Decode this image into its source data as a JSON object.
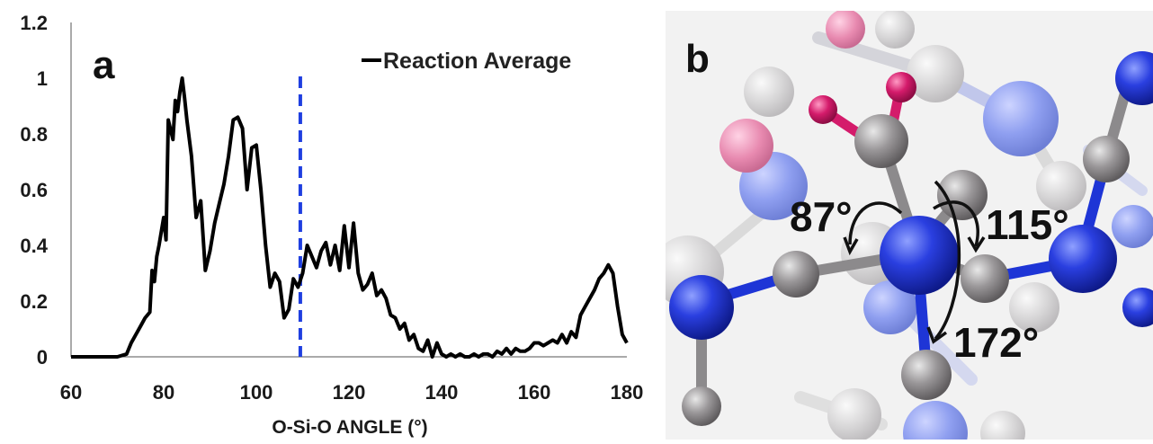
{
  "panel_a": {
    "letter": "a"
  },
  "panel_b": {
    "letter": "b",
    "angle_labels": [
      "87°",
      "115°",
      "172°"
    ]
  },
  "colors": {
    "series": "#000000",
    "reference_line": "#1f3fe0",
    "nitrogen": "#1e35d6",
    "carbon": "#8c8a8c",
    "oxygen": "#d41b6b"
  },
  "chart_data": {
    "type": "line",
    "title": "",
    "xlabel": "O-Si-O ANGLE (°)",
    "ylabel": "",
    "xlim": [
      60,
      180
    ],
    "ylim": [
      0,
      1.2
    ],
    "xticks": [
      "60",
      "80",
      "100",
      "120",
      "140",
      "160",
      "180"
    ],
    "yticks": [
      "0",
      "0.2",
      "0.4",
      "0.6",
      "0.8",
      "1",
      "1.2"
    ],
    "legend_position": "top-right",
    "reference_line": {
      "x": 109.5,
      "style": "dashed"
    },
    "series": [
      {
        "name": "Reaction Average",
        "x": [
          60,
          70,
          72,
          73,
          74,
          75,
          76,
          77,
          77.5,
          78,
          78.5,
          79,
          80,
          80.5,
          81,
          82,
          82.5,
          83,
          83.5,
          84,
          84.5,
          85,
          86,
          87,
          88,
          89,
          90,
          91,
          92,
          93,
          94,
          95,
          96,
          97,
          98,
          99,
          100,
          101,
          102,
          103,
          104,
          105,
          106,
          107,
          108,
          109,
          110,
          111,
          112,
          113,
          114,
          115,
          116,
          117,
          118,
          119,
          120,
          121,
          122,
          123,
          124,
          125,
          126,
          127,
          128,
          129,
          130,
          131,
          132,
          133,
          134,
          135,
          136,
          137,
          138,
          139,
          140,
          141,
          142,
          143,
          144,
          145,
          146,
          147,
          148,
          149,
          150,
          151,
          152,
          153,
          154,
          155,
          156,
          157,
          158,
          159,
          160,
          161,
          162,
          163,
          164,
          165,
          166,
          167,
          168,
          169,
          170,
          171,
          172,
          173,
          174,
          175,
          176,
          177,
          178,
          179,
          180
        ],
        "y": [
          0,
          0,
          0.01,
          0.05,
          0.08,
          0.11,
          0.14,
          0.16,
          0.31,
          0.27,
          0.36,
          0.4,
          0.5,
          0.42,
          0.85,
          0.78,
          0.92,
          0.88,
          0.95,
          1.0,
          0.93,
          0.85,
          0.72,
          0.5,
          0.56,
          0.31,
          0.38,
          0.48,
          0.55,
          0.62,
          0.72,
          0.85,
          0.86,
          0.82,
          0.6,
          0.75,
          0.76,
          0.6,
          0.4,
          0.25,
          0.3,
          0.27,
          0.14,
          0.17,
          0.28,
          0.25,
          0.3,
          0.4,
          0.36,
          0.32,
          0.38,
          0.41,
          0.33,
          0.4,
          0.31,
          0.47,
          0.32,
          0.48,
          0.3,
          0.24,
          0.26,
          0.3,
          0.22,
          0.24,
          0.21,
          0.15,
          0.14,
          0.1,
          0.12,
          0.06,
          0.08,
          0.03,
          0.02,
          0.06,
          0.0,
          0.05,
          0.01,
          0.0,
          0.01,
          0.0,
          0.01,
          0.0,
          0.0,
          0.01,
          0.0,
          0.01,
          0.01,
          0.0,
          0.02,
          0.01,
          0.03,
          0.01,
          0.03,
          0.02,
          0.02,
          0.03,
          0.05,
          0.05,
          0.04,
          0.05,
          0.06,
          0.05,
          0.08,
          0.05,
          0.09,
          0.07,
          0.15,
          0.18,
          0.21,
          0.24,
          0.28,
          0.3,
          0.33,
          0.3,
          0.18,
          0.08,
          0.05
        ]
      }
    ]
  }
}
